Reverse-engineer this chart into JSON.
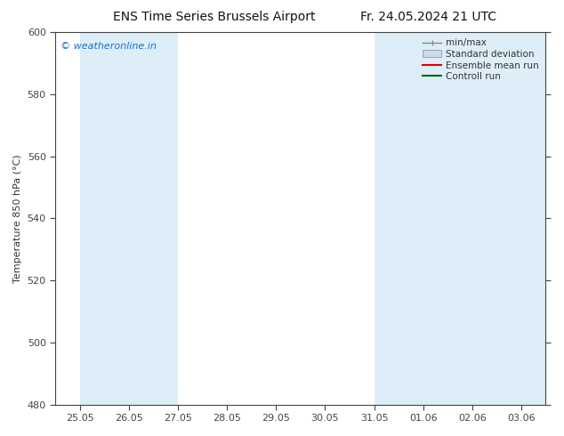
{
  "title_left": "ENS Time Series Brussels Airport",
  "title_right": "Fr. 24.05.2024 21 UTC",
  "ylabel": "Temperature 850 hPa (°C)",
  "ylim": [
    480,
    600
  ],
  "yticks": [
    480,
    500,
    520,
    540,
    560,
    580,
    600
  ],
  "xtick_labels": [
    "25.05",
    "26.05",
    "27.05",
    "28.05",
    "29.05",
    "30.05",
    "31.05",
    "01.06",
    "02.06",
    "03.06"
  ],
  "shaded_x_indices": [
    0,
    1,
    6,
    7,
    8
  ],
  "shaded_color": "#ddeef8",
  "watermark_text": "© weatheronline.in",
  "watermark_color": "#1a6fcc",
  "bg_color": "#ffffff",
  "plot_bg_color": "#ffffff",
  "legend_labels": [
    "min/max",
    "Standard deviation",
    "Ensemble mean run",
    "Controll run"
  ],
  "legend_line_color": "#888888",
  "legend_std_color": "#c8dded",
  "legend_ens_color": "#dd0000",
  "legend_ctrl_color": "#006600",
  "title_fontsize": 10,
  "axis_fontsize": 8,
  "tick_fontsize": 8,
  "watermark_fontsize": 8,
  "legend_fontsize": 7.5,
  "spine_color": "#444444",
  "tick_color": "#444444"
}
